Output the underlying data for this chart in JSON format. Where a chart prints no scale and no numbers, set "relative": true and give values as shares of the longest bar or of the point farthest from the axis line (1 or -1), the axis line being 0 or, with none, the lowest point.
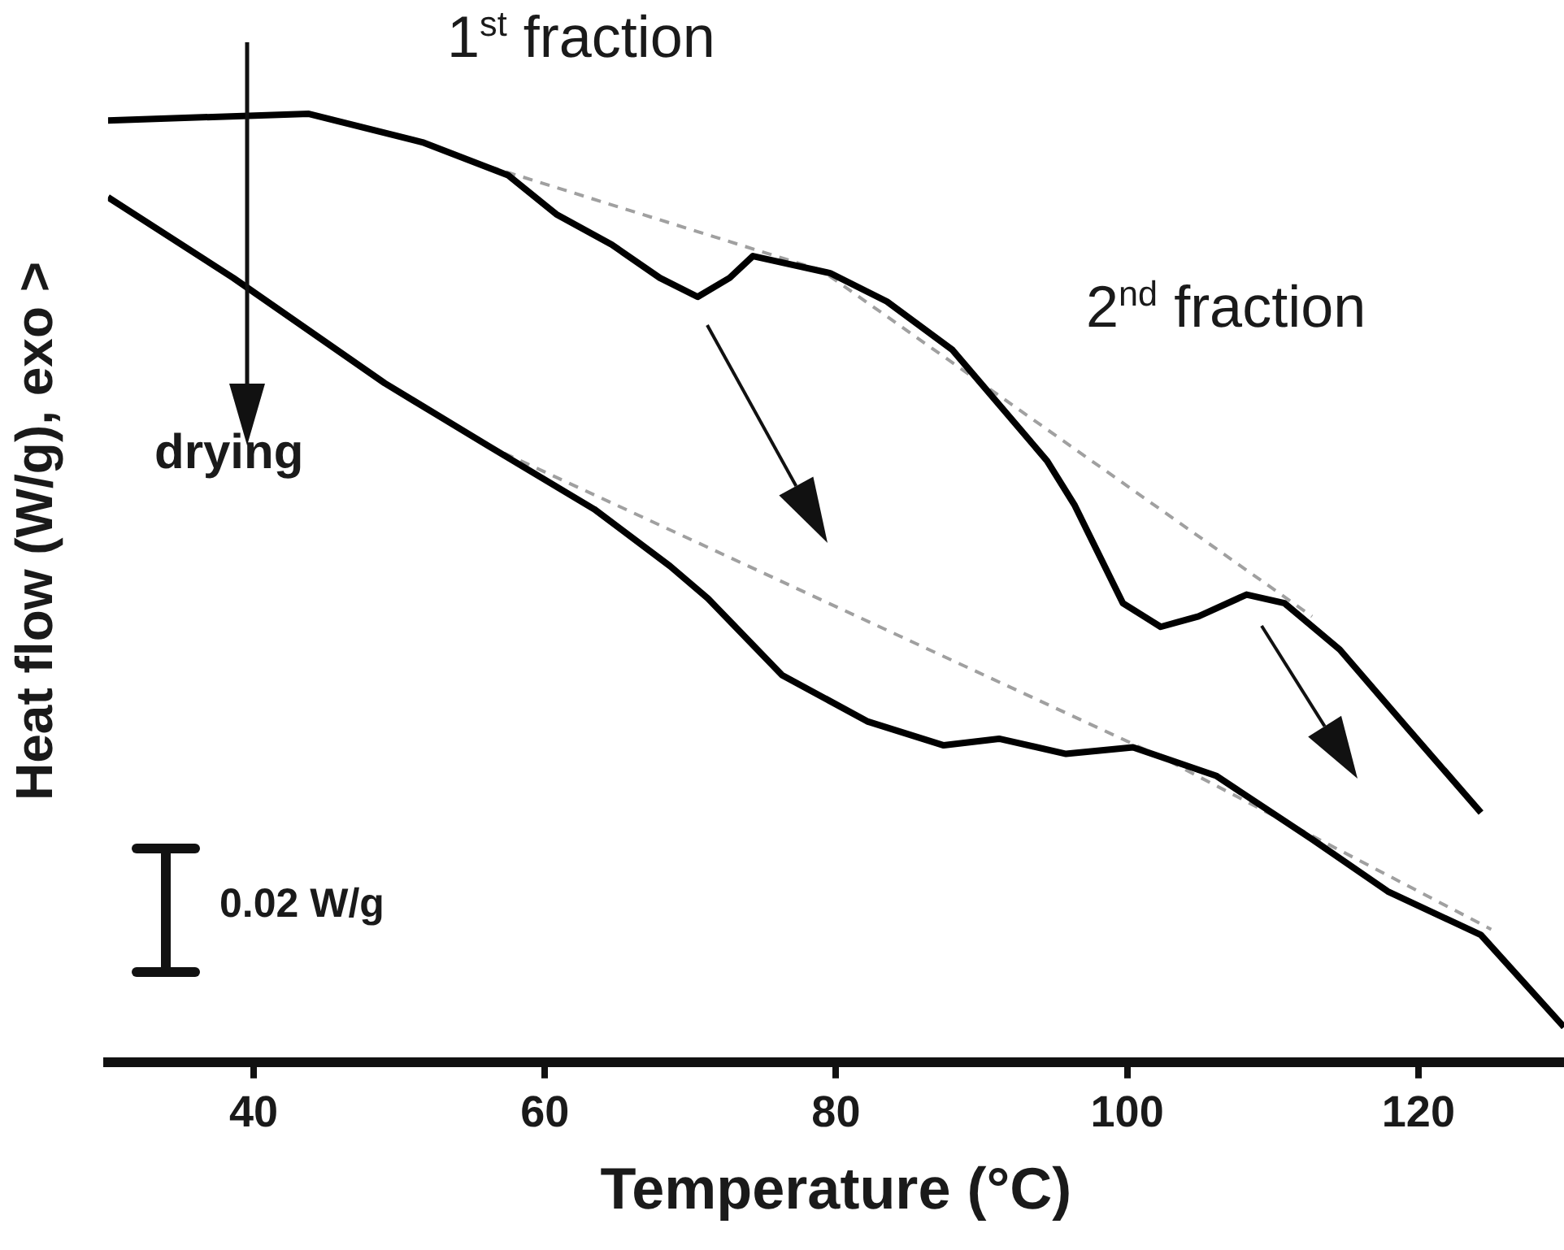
{
  "chart_data": {
    "type": "line",
    "relative": true,
    "xlabel": "Temperature (°C)",
    "ylabel": "Heat flow (W/g), exo >",
    "xlim": [
      30,
      130
    ],
    "xticks": [
      40,
      60,
      80,
      100,
      120
    ],
    "grid": false,
    "marker": "none",
    "annotations": [
      "1$^{st}$ fraction",
      "2$^{nd}$ fraction",
      "drying",
      "0.02 W/g"
    ],
    "series": [
      {
        "color": "#000000",
        "line_style": "solid",
        "x": [
          30,
          43.8,
          51.6,
          57.5,
          60.8,
          64.6,
          67.9,
          70.5,
          72.7,
          74.3,
          79.6,
          83.5,
          88.0,
          94.5,
          96.4,
          99.7,
          102.3,
          104.9,
          108.2,
          110.8,
          114.6,
          119.2,
          124.3
        ],
        "values": [
          0.993,
          1.0,
          0.97,
          0.935,
          0.894,
          0.862,
          0.827,
          0.807,
          0.827,
          0.85,
          0.832,
          0.802,
          0.751,
          0.634,
          0.587,
          0.484,
          0.459,
          0.47,
          0.493,
          0.484,
          0.435,
          0.353,
          0.263
        ]
      },
      {
        "color": "#000000",
        "line_style": "solid",
        "x": [
          30,
          38.6,
          49.0,
          56.1,
          63.4,
          68.6,
          71.2,
          76.3,
          82.2,
          87.4,
          91.2,
          95.8,
          100.4,
          106.1,
          112.7,
          117.9,
          124.3,
          130
        ],
        "values": [
          0.912,
          0.827,
          0.716,
          0.65,
          0.583,
          0.523,
          0.489,
          0.408,
          0.359,
          0.334,
          0.341,
          0.325,
          0.332,
          0.302,
          0.235,
          0.18,
          0.134,
          0.037
        ]
      },
      {
        "color": "#a0a0a0",
        "line_style": "dashed",
        "x": [
          55,
          79,
          112.7
        ],
        "values": [
          0.95,
          0.835,
          0.47
        ]
      },
      {
        "color": "#a0a0a0",
        "line_style": "dashed",
        "x": [
          56.1,
          102.3,
          125
        ],
        "values": [
          0.65,
          0.322,
          0.14
        ]
      }
    ]
  }
}
